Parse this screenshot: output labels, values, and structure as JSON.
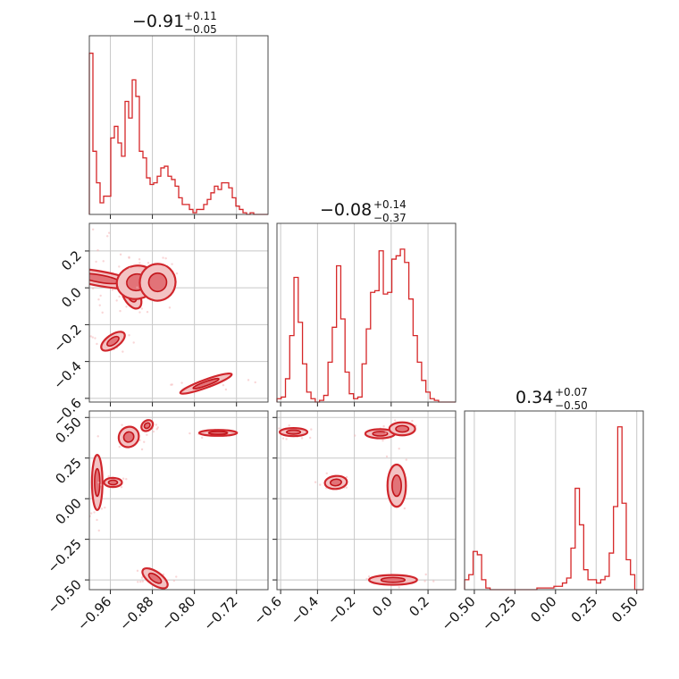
{
  "colors": {
    "accent": "#d62728",
    "fill_light": "#f3c2c3",
    "fill_mid": "#e27378",
    "grid": "#c8c8c8"
  },
  "chart_data": {
    "type": "corner",
    "subplot_type": [
      "histogram",
      "scatter",
      "histogram",
      "scatter",
      "scatter",
      "histogram"
    ],
    "grid": true,
    "titles": [
      {
        "main": "−0.91",
        "sup": "+0.11",
        "sub": "−0.05"
      },
      {
        "main": "−0.08",
        "sup": "+0.14",
        "sub": "−0.37"
      },
      {
        "main": "0.34",
        "sup": "+0.07",
        "sub": "−0.50"
      }
    ],
    "axes": [
      {
        "range": [
          -1.0,
          -0.66
        ],
        "ticks": [
          -0.96,
          -0.88,
          -0.8,
          -0.72
        ],
        "ticklabels": [
          "−0.96",
          "−0.88",
          "−0.80",
          "−0.72"
        ]
      },
      {
        "range": [
          -0.62,
          0.35
        ],
        "ticks": [
          -0.6,
          -0.4,
          -0.2,
          0.0,
          0.2
        ],
        "ticklabels": [
          "−0.6",
          "−0.4",
          "−0.2",
          "0.0",
          "0.2"
        ]
      },
      {
        "range": [
          -0.56,
          0.54
        ],
        "ticks": [
          -0.5,
          -0.25,
          0.0,
          0.25,
          0.5
        ],
        "ticklabels": [
          "−0.50",
          "−0.25",
          "0.00",
          "0.25",
          "0.50"
        ]
      }
    ],
    "hist1": {
      "bins": [
        -1.0,
        -0.66
      ],
      "values": [
        0.97,
        0.38,
        0.19,
        0.07,
        0.11,
        0.11,
        0.46,
        0.53,
        0.43,
        0.35,
        0.68,
        0.58,
        0.81,
        0.71,
        0.38,
        0.34,
        0.22,
        0.18,
        0.19,
        0.23,
        0.28,
        0.29,
        0.23,
        0.21,
        0.17,
        0.1,
        0.06,
        0.06,
        0.03,
        0.01,
        0.03,
        0.03,
        0.06,
        0.09,
        0.13,
        0.17,
        0.15,
        0.19,
        0.19,
        0.16,
        0.1,
        0.05,
        0.03,
        0.01,
        0.0,
        0.01,
        0.0,
        0.0,
        0.0,
        0.0
      ]
    },
    "hist2": {
      "bins": [
        -0.62,
        0.35
      ],
      "values": [
        0.02,
        0.03,
        0.14,
        0.4,
        0.75,
        0.48,
        0.23,
        0.06,
        0.02,
        0.0,
        0.01,
        0.04,
        0.24,
        0.45,
        0.82,
        0.5,
        0.18,
        0.05,
        0.02,
        0.03,
        0.23,
        0.44,
        0.66,
        0.67,
        0.91,
        0.65,
        0.66,
        0.86,
        0.88,
        0.92,
        0.84,
        0.62,
        0.4,
        0.24,
        0.13,
        0.06,
        0.02,
        0.01,
        0.0,
        0.0,
        0.0,
        0.0
      ]
    },
    "hist3": {
      "bins": [
        -0.56,
        0.54
      ],
      "values": [
        0.06,
        0.09,
        0.23,
        0.21,
        0.06,
        0.01,
        0.0,
        0.0,
        0.0,
        0.0,
        0.0,
        0.0,
        0.0,
        0.0,
        0.0,
        0.0,
        0.0,
        0.01,
        0.01,
        0.01,
        0.01,
        0.02,
        0.02,
        0.04,
        0.07,
        0.25,
        0.61,
        0.39,
        0.12,
        0.06,
        0.06,
        0.04,
        0.06,
        0.08,
        0.22,
        0.5,
        0.98,
        0.52,
        0.18,
        0.09,
        0.0,
        0.0
      ]
    },
    "blobs_12": [
      {
        "x": -0.98,
        "y": 0.05,
        "w": 0.014,
        "h": 0.22,
        "angle": -80
      },
      {
        "x": -0.92,
        "y": -0.04,
        "w": 0.015,
        "h": 0.08,
        "angle": -30
      },
      {
        "x": -0.91,
        "y": 0.03,
        "w": 0.038,
        "h": 0.09,
        "angle": -10
      },
      {
        "x": -0.87,
        "y": 0.03,
        "w": 0.034,
        "h": 0.1,
        "angle": 10
      },
      {
        "x": -0.955,
        "y": -0.29,
        "w": 0.026,
        "h": 0.035,
        "angle": -35
      },
      {
        "x": -0.778,
        "y": -0.52,
        "w": 0.052,
        "h": 0.022,
        "angle": -20
      }
    ],
    "blobs_13": [
      {
        "x": -0.985,
        "y": 0.1,
        "w": 0.01,
        "h": 0.17,
        "angle": 0
      },
      {
        "x": -0.925,
        "y": 0.38,
        "w": 0.02,
        "h": 0.06,
        "angle": -50
      },
      {
        "x": -0.89,
        "y": 0.45,
        "w": 0.012,
        "h": 0.03,
        "angle": -40
      },
      {
        "x": -0.955,
        "y": 0.1,
        "w": 0.017,
        "h": 0.028,
        "angle": 0
      },
      {
        "x": -0.755,
        "y": 0.405,
        "w": 0.036,
        "h": 0.018,
        "angle": 0
      },
      {
        "x": -0.875,
        "y": -0.49,
        "w": 0.028,
        "h": 0.04,
        "angle": 35
      }
    ],
    "blobs_23": [
      {
        "x": -0.53,
        "y": 0.41,
        "w": 0.075,
        "h": 0.025,
        "angle": 0
      },
      {
        "x": -0.3,
        "y": 0.1,
        "w": 0.06,
        "h": 0.04,
        "angle": -5
      },
      {
        "x": -0.06,
        "y": 0.4,
        "w": 0.08,
        "h": 0.028,
        "angle": 0
      },
      {
        "x": 0.06,
        "y": 0.43,
        "w": 0.07,
        "h": 0.04,
        "angle": 0
      },
      {
        "x": 0.03,
        "y": 0.08,
        "w": 0.05,
        "h": 0.13,
        "angle": 0
      },
      {
        "x": 0.01,
        "y": -0.5,
        "w": 0.13,
        "h": 0.03,
        "angle": 0
      }
    ]
  }
}
